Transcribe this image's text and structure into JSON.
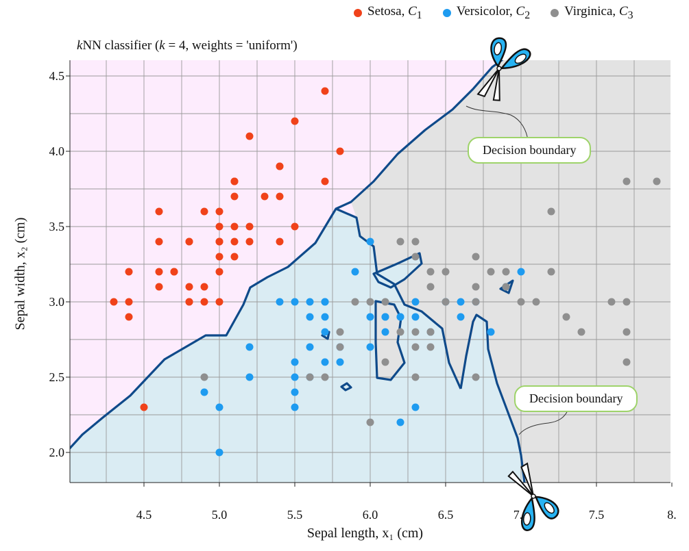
{
  "chart_data": {
    "type": "scatter",
    "title_parts": [
      "k",
      "NN classifier (",
      "k",
      " = 4, weights = 'uniform')"
    ],
    "xlabel": "Sepal length, x₁ (cm)",
    "ylabel": "Sepal width, x₂ (cm)",
    "xlim": [
      4.0,
      8.0
    ],
    "ylim": [
      1.8,
      4.6
    ],
    "xticks": [
      4.5,
      5.0,
      5.5,
      6.0,
      6.5,
      7.0,
      7.5,
      8.0
    ],
    "xtick_labels": [
      "4.5",
      "5.0",
      "5.5",
      "6.0",
      "6.5",
      "7.0",
      "7.5",
      "8."
    ],
    "yticks": [
      2.0,
      2.5,
      3.0,
      3.5,
      4.0,
      4.5
    ],
    "ytick_labels": [
      "2.0",
      "2.5",
      "3.0",
      "3.5",
      "4.0",
      "4.5"
    ],
    "grid": true,
    "legend_position": "top-right",
    "colors": {
      "setosa": "#f0421a",
      "versicolor": "#1e9bf0",
      "virginica": "#8f8f8f",
      "region_setosa": "#fdecfd",
      "region_versicolor": "#daecf3",
      "region_virginica": "#e3e3e3",
      "boundary": "#0f4a8a",
      "callout_border": "#9ed36a"
    },
    "series": [
      {
        "name": "Setosa, C1",
        "legend_label": "Setosa, ",
        "legend_sub": "C",
        "legend_subidx": "1",
        "color": "#f0421a",
        "x": [
          4.3,
          4.4,
          4.4,
          4.4,
          4.5,
          4.6,
          4.6,
          4.6,
          4.6,
          4.7,
          4.7,
          4.8,
          4.8,
          4.8,
          4.8,
          4.8,
          4.9,
          4.9,
          4.9,
          5.0,
          5.0,
          5.0,
          5.0,
          5.0,
          5.0,
          5.0,
          5.1,
          5.1,
          5.1,
          5.1,
          5.1,
          5.1,
          5.2,
          5.2,
          5.2,
          5.3,
          5.4,
          5.4,
          5.4,
          5.4,
          5.5,
          5.5,
          5.7,
          5.7,
          5.8
        ],
        "y": [
          3.0,
          2.9,
          3.0,
          3.2,
          2.3,
          3.1,
          3.2,
          3.4,
          3.6,
          3.2,
          3.2,
          3.0,
          3.1,
          3.4,
          3.0,
          3.4,
          3.0,
          3.1,
          3.6,
          3.0,
          3.2,
          3.3,
          3.4,
          3.5,
          3.6,
          3.4,
          3.3,
          3.4,
          3.5,
          3.7,
          3.8,
          3.8,
          3.4,
          3.5,
          4.1,
          3.7,
          3.4,
          3.7,
          3.9,
          3.9,
          3.5,
          4.2,
          3.8,
          4.4,
          4.0
        ]
      },
      {
        "name": "Versicolor, C2",
        "legend_label": "Versicolor, ",
        "legend_sub": "C",
        "legend_subidx": "2",
        "color": "#1e9bf0",
        "x": [
          4.9,
          5.0,
          5.0,
          5.2,
          5.2,
          5.4,
          5.5,
          5.5,
          5.5,
          5.5,
          5.5,
          5.6,
          5.6,
          5.6,
          5.6,
          5.7,
          5.7,
          5.7,
          5.7,
          5.7,
          5.8,
          5.8,
          5.9,
          6.0,
          6.0,
          6.0,
          6.1,
          6.1,
          6.1,
          6.2,
          6.2,
          6.2,
          6.3,
          6.3,
          6.3,
          6.4,
          6.5,
          6.6,
          6.6,
          6.7,
          6.8,
          6.9,
          7.0
        ],
        "y": [
          2.4,
          2.0,
          2.3,
          2.5,
          2.7,
          3.0,
          2.3,
          2.4,
          2.5,
          2.6,
          3.0,
          2.5,
          2.7,
          2.9,
          3.0,
          2.6,
          2.8,
          2.9,
          3.0,
          3.0,
          2.6,
          2.7,
          3.2,
          2.7,
          2.9,
          3.4,
          2.8,
          2.9,
          2.9,
          2.2,
          2.9,
          2.9,
          2.3,
          2.9,
          3.0,
          2.8,
          3.0,
          2.9,
          3.0,
          3.0,
          2.8,
          3.1,
          3.2
        ]
      },
      {
        "name": "Virginica, C3",
        "legend_label": "Virginica, ",
        "legend_sub": "C",
        "legend_subidx": "3",
        "color": "#8f8f8f",
        "x": [
          4.9,
          5.6,
          5.7,
          5.8,
          5.8,
          5.9,
          6.0,
          6.0,
          6.1,
          6.1,
          6.2,
          6.2,
          6.3,
          6.3,
          6.3,
          6.3,
          6.3,
          6.4,
          6.4,
          6.4,
          6.4,
          6.4,
          6.5,
          6.5,
          6.7,
          6.7,
          6.7,
          6.7,
          6.8,
          6.9,
          6.9,
          7.0,
          7.1,
          7.2,
          7.2,
          7.3,
          7.4,
          7.6,
          7.7,
          7.7,
          7.7,
          7.7,
          7.9
        ],
        "y": [
          2.5,
          2.5,
          2.5,
          2.7,
          2.8,
          3.0,
          2.2,
          3.0,
          2.6,
          3.0,
          2.8,
          3.4,
          2.5,
          2.7,
          2.8,
          3.3,
          3.4,
          2.7,
          2.8,
          3.1,
          3.2,
          2.8,
          3.0,
          3.2,
          2.5,
          3.0,
          3.1,
          3.3,
          3.2,
          3.1,
          3.2,
          3.0,
          3.0,
          3.2,
          3.6,
          2.9,
          2.8,
          3.0,
          2.6,
          2.8,
          3.0,
          3.8,
          3.8
        ]
      }
    ],
    "annotations": [
      {
        "label": "Decision boundary"
      },
      {
        "label": "Decision boundary"
      }
    ]
  }
}
